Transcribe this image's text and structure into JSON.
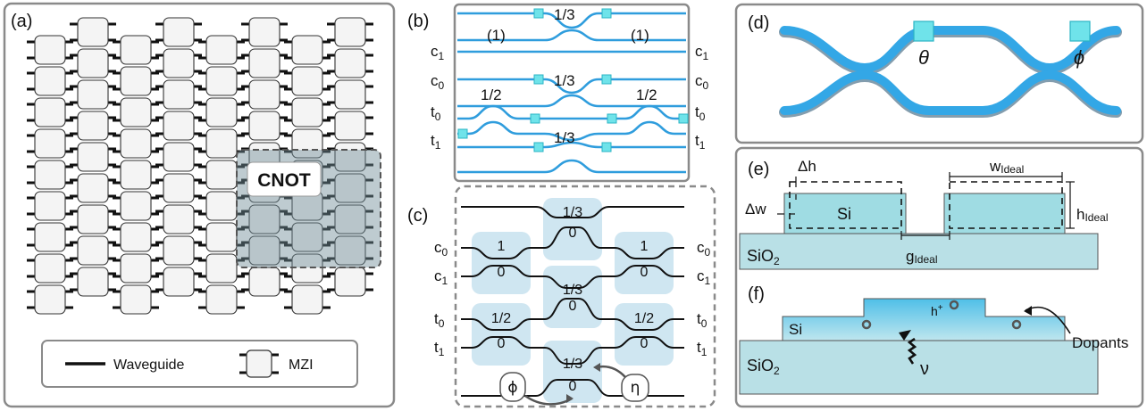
{
  "panels": {
    "a": {
      "label": "(a)",
      "overlay_label": "CNOT",
      "legend": {
        "waveguide": "Waveguide",
        "mzi": "MZI"
      }
    },
    "b": {
      "label": "(b)",
      "left_ports": [
        "c",
        "c",
        "t",
        "t"
      ],
      "port_subs": [
        "1",
        "0",
        "0",
        "1"
      ],
      "ratios": [
        "1/3",
        "1/2",
        "1/3",
        "1/2",
        "1/3"
      ],
      "ones": [
        "(1)",
        "(1)"
      ]
    },
    "c": {
      "label": "(c)",
      "ports": [
        "c",
        "c",
        "t",
        "t"
      ],
      "port_subs": [
        "0",
        "1",
        "0",
        "1"
      ],
      "blocks": [
        {
          "top": "1",
          "bot": "0"
        },
        {
          "top": "1/3",
          "bot": "0"
        },
        {
          "top": "1",
          "bot": "0"
        },
        {
          "top": "1/3",
          "bot": "0"
        },
        {
          "top": "1/2",
          "bot": "0"
        },
        {
          "top": "1/2",
          "bot": "0"
        },
        {
          "top": "1/3",
          "bot": "0"
        }
      ],
      "phi": "ϕ",
      "eta": "η"
    },
    "d": {
      "label": "(d)",
      "theta": "θ",
      "phi": "ϕ"
    },
    "e": {
      "label": "(e)",
      "dh": "Δh",
      "dw": "Δw",
      "si": "Si",
      "sio2": "SiO",
      "w": "w",
      "w_sub": "Ideal",
      "h": "h",
      "h_sub": "Ideal",
      "g": "g",
      "g_sub": "Ideal"
    },
    "f": {
      "label": "(f)",
      "si": "Si",
      "sio2": "SiO",
      "hplus": "h",
      "dopants": "Dopants",
      "nu": "ν"
    }
  },
  "colors": {
    "accent": "#33a7e6",
    "light": "#cfe6f1",
    "box": "#9fdce3",
    "slab": "#b9e0e6"
  }
}
